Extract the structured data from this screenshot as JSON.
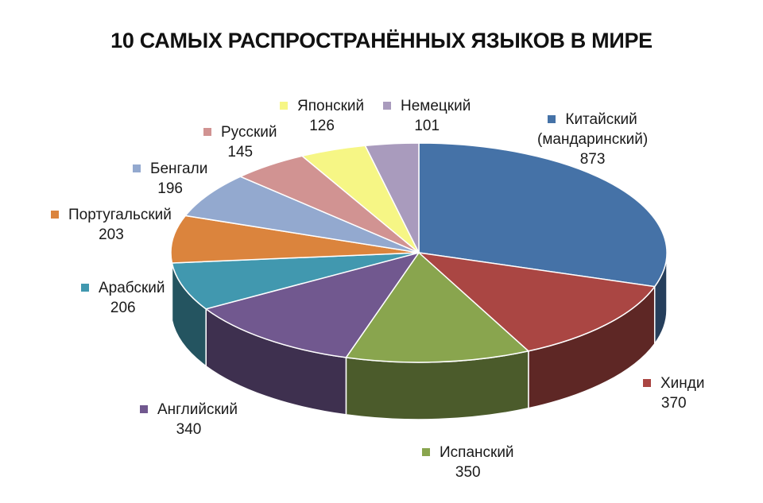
{
  "chart_data": {
    "type": "pie",
    "title": "10 САМЫХ РАСПРОСТРАНЁННЫХ ЯЗЫКОВ В МИРЕ",
    "categories": [
      "Китайский (мандаринский)",
      "Хинди",
      "Испанский",
      "Английский",
      "Арабский",
      "Португальский",
      "Бенгали",
      "Русский",
      "Японский",
      "Немецкий"
    ],
    "values": [
      873,
      370,
      350,
      340,
      206,
      203,
      196,
      145,
      126,
      101
    ],
    "colors": [
      "#4572a7",
      "#aa4643",
      "#89a54e",
      "#71588f",
      "#4198af",
      "#db843d",
      "#93a9cf",
      "#d19392",
      "#f6f685",
      "#a99bbd"
    ],
    "labels": [
      {
        "name_lines": [
          "Китайский",
          "(мандаринский)"
        ],
        "value": "873"
      },
      {
        "name_lines": [
          "Хинди"
        ],
        "value": "370"
      },
      {
        "name_lines": [
          "Испанский"
        ],
        "value": "350"
      },
      {
        "name_lines": [
          "Английский"
        ],
        "value": "340"
      },
      {
        "name_lines": [
          "Арабский"
        ],
        "value": "206"
      },
      {
        "name_lines": [
          "Португальский"
        ],
        "value": "203"
      },
      {
        "name_lines": [
          "Бенгали"
        ],
        "value": "196"
      },
      {
        "name_lines": [
          "Русский"
        ],
        "value": "145"
      },
      {
        "name_lines": [
          "Японский"
        ],
        "value": "126"
      },
      {
        "name_lines": [
          "Немецкий"
        ],
        "value": "101"
      }
    ],
    "style": "3d-pie",
    "legend": "none"
  }
}
